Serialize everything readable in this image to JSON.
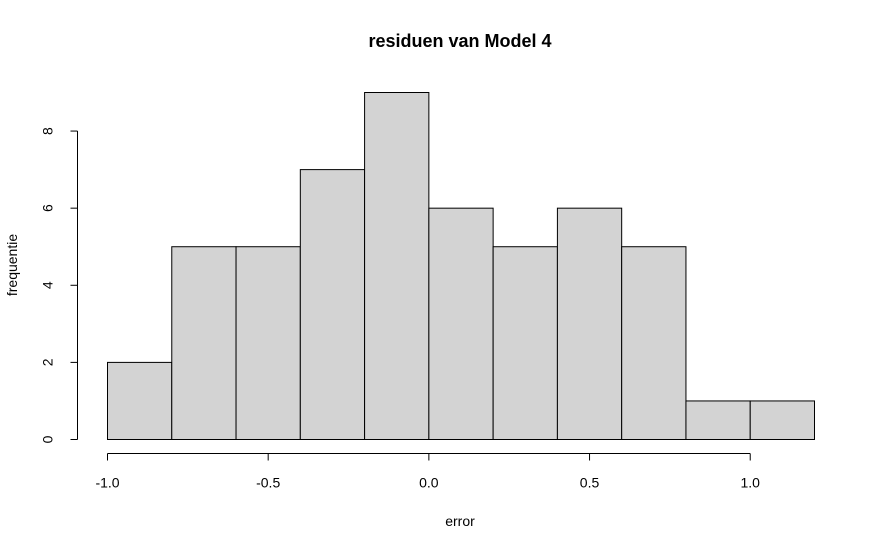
{
  "chart_data": {
    "type": "bar",
    "title": "residuen van Model 4",
    "xlabel": "error",
    "ylabel": "frequentie",
    "bins": [
      {
        "x0": -1.0,
        "x1": -0.8,
        "count": 2
      },
      {
        "x0": -0.8,
        "x1": -0.6,
        "count": 5
      },
      {
        "x0": -0.6,
        "x1": -0.4,
        "count": 5
      },
      {
        "x0": -0.4,
        "x1": -0.2,
        "count": 7
      },
      {
        "x0": -0.2,
        "x1": 0.0,
        "count": 9
      },
      {
        "x0": 0.0,
        "x1": 0.2,
        "count": 6
      },
      {
        "x0": 0.2,
        "x1": 0.4,
        "count": 5
      },
      {
        "x0": 0.4,
        "x1": 0.6,
        "count": 6
      },
      {
        "x0": 0.6,
        "x1": 0.8,
        "count": 5
      },
      {
        "x0": 0.8,
        "x1": 1.0,
        "count": 1
      },
      {
        "x0": 1.0,
        "x1": 1.2,
        "count": 1
      }
    ],
    "xticks": [
      {
        "value": -1.0,
        "label": "-1.0"
      },
      {
        "value": -0.5,
        "label": "-0.5"
      },
      {
        "value": 0.0,
        "label": "0.0"
      },
      {
        "value": 0.5,
        "label": "0.5"
      },
      {
        "value": 1.0,
        "label": "1.0"
      }
    ],
    "yticks": [
      {
        "value": 0,
        "label": "0"
      },
      {
        "value": 2,
        "label": "2"
      },
      {
        "value": 4,
        "label": "4"
      },
      {
        "value": 6,
        "label": "6"
      },
      {
        "value": 8,
        "label": "8"
      }
    ],
    "xlim": [
      -1.0,
      1.2
    ],
    "ylim": [
      0,
      9
    ],
    "grid": false,
    "bar_color": "#d3d3d3",
    "edge_color": "#000000"
  }
}
